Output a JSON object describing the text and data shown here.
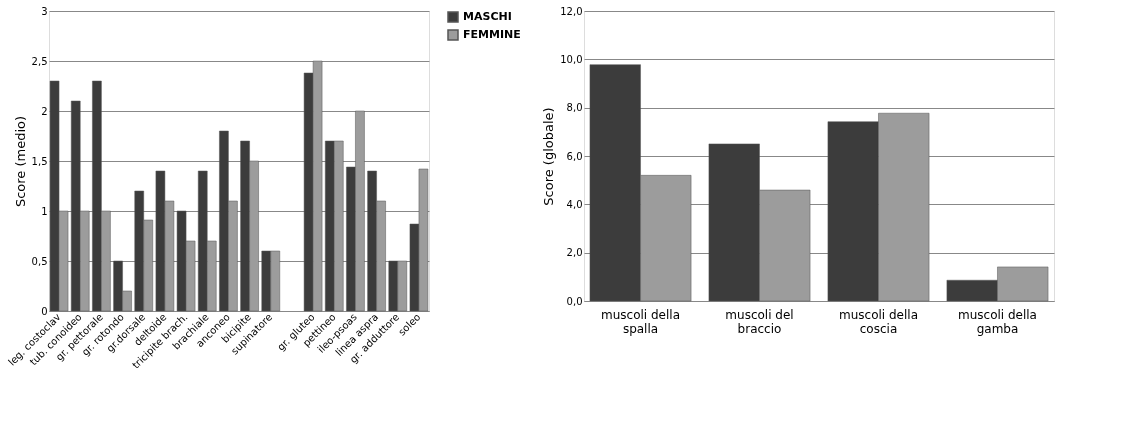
{
  "chart_data": [
    {
      "type": "bar",
      "ylabel": "Score (medio)",
      "categories": [
        "leg. costoclav",
        "tub. conoideo",
        "gr. pettorale",
        "gr. rotondo",
        "gr.dorsale",
        "deltoide",
        "tricipite brach.",
        "brachiale",
        "anconeo",
        "bicipite",
        "supinatore",
        null,
        "gr. gluteo",
        "pettineo",
        "ileo-psoas",
        "linea aspra",
        "gr. adduttore",
        "soleo"
      ],
      "series": [
        {
          "name": "MASCHI",
          "color": "#3c3c3c",
          "values": [
            2.3,
            2.1,
            2.3,
            0.5,
            1.2,
            1.4,
            1.0,
            1.4,
            1.8,
            1.7,
            0.6,
            null,
            2.38,
            1.7,
            1.44,
            1.4,
            0.5,
            0.87
          ]
        },
        {
          "name": "FEMMINE",
          "color": "#9c9c9c",
          "values": [
            1.0,
            1.0,
            1.0,
            0.2,
            0.91,
            1.1,
            0.7,
            0.7,
            1.1,
            1.5,
            0.6,
            null,
            2.5,
            1.7,
            2.0,
            1.1,
            0.5,
            1.42
          ]
        }
      ],
      "ylim": [
        0,
        3
      ],
      "yticks": [
        0,
        {
          "value": 0.5,
          "label": "0,5"
        },
        1,
        {
          "value": 1.5,
          "label": "1,5"
        },
        2,
        {
          "value": 2.5,
          "label": "2,5"
        },
        3
      ],
      "grid": "y",
      "legend": "right"
    },
    {
      "type": "bar",
      "ylabel": "Score (globale)",
      "categories": [
        "muscoli della spalla",
        "muscoli del braccio",
        "muscoli della coscia",
        "muscoli della gamba"
      ],
      "series": [
        {
          "color": "#3c3c3c",
          "values": [
            9.78,
            6.5,
            7.42,
            0.86
          ]
        },
        {
          "color": "#9c9c9c",
          "values": [
            5.2,
            4.59,
            7.77,
            1.41
          ]
        }
      ],
      "ylim": [
        0,
        12
      ],
      "yticks": [
        {
          "value": 0,
          "label": "0,0"
        },
        {
          "value": 2,
          "label": "2,0"
        },
        {
          "value": 4,
          "label": "4,0"
        },
        {
          "value": 6,
          "label": "6,0"
        },
        {
          "value": 8,
          "label": "8,0"
        },
        {
          "value": 10,
          "label": "10,0"
        },
        {
          "value": 12,
          "label": "12,0"
        }
      ],
      "grid": "y"
    }
  ]
}
